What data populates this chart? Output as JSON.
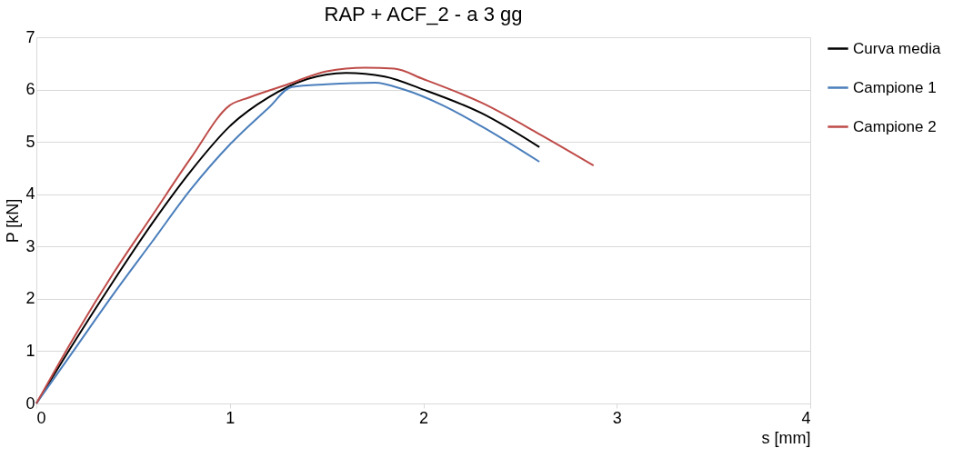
{
  "chart_data": {
    "type": "line",
    "title": "RAP + ACF_2 - a 3 gg",
    "xlabel": "s [mm]",
    "ylabel": "P [kN]",
    "xlim": [
      0,
      4
    ],
    "xticks": [
      0,
      1,
      2,
      3,
      4
    ],
    "ylim": [
      0,
      7
    ],
    "yticks": [
      0,
      1,
      2,
      3,
      4,
      5,
      6,
      7
    ],
    "grid": "y",
    "legend": "right",
    "marker": "none",
    "line_style": "solid",
    "series": [
      {
        "name": "Curva media",
        "color": "#000000",
        "x": [
          0,
          0.2,
          0.4,
          0.6,
          0.8,
          1.0,
          1.2,
          1.4,
          1.6,
          1.8,
          2.0,
          2.3,
          2.6
        ],
        "values": [
          0,
          1.2,
          2.35,
          3.45,
          4.45,
          5.3,
          5.85,
          6.2,
          6.32,
          6.25,
          6.0,
          5.55,
          4.9
        ]
      },
      {
        "name": "Campione 1",
        "color": "#4a7ebb",
        "x": [
          0,
          0.2,
          0.4,
          0.6,
          0.8,
          1.0,
          1.2,
          1.32,
          1.5,
          1.75,
          1.9,
          2.1,
          2.3,
          2.6
        ],
        "values": [
          0,
          1.05,
          2.1,
          3.1,
          4.1,
          4.95,
          5.65,
          6.05,
          6.1,
          6.13,
          6.0,
          5.7,
          5.3,
          4.62
        ]
      },
      {
        "name": "Campione 2",
        "color": "#be4b48",
        "x": [
          0,
          0.2,
          0.4,
          0.6,
          0.8,
          1.0,
          1.1,
          1.3,
          1.5,
          1.7,
          1.85,
          2.0,
          2.3,
          2.6,
          2.88
        ],
        "values": [
          0,
          1.3,
          2.5,
          3.6,
          4.7,
          5.7,
          5.85,
          6.1,
          6.35,
          6.42,
          6.4,
          6.2,
          5.75,
          5.15,
          4.55
        ]
      }
    ]
  }
}
